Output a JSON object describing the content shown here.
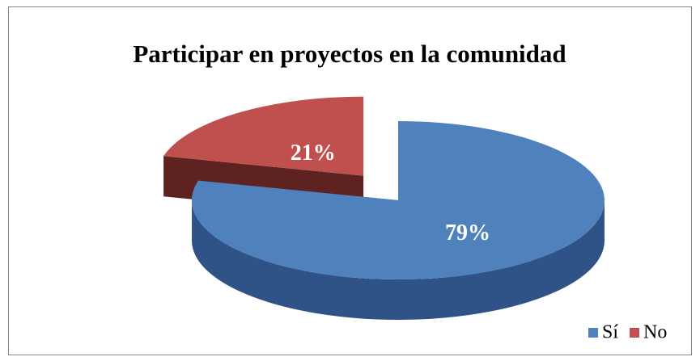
{
  "chart_data": {
    "type": "pie3d",
    "title": "Participar en proyectos en la comunidad",
    "categories": [
      "Sí",
      "No"
    ],
    "values": [
      79,
      21
    ],
    "value_labels": [
      "79%",
      "21%"
    ],
    "colors": [
      "#4f81bd",
      "#c0504d"
    ],
    "side_colors": [
      "#2f5386",
      "#5e2220"
    ],
    "legend": "bottom-right"
  }
}
